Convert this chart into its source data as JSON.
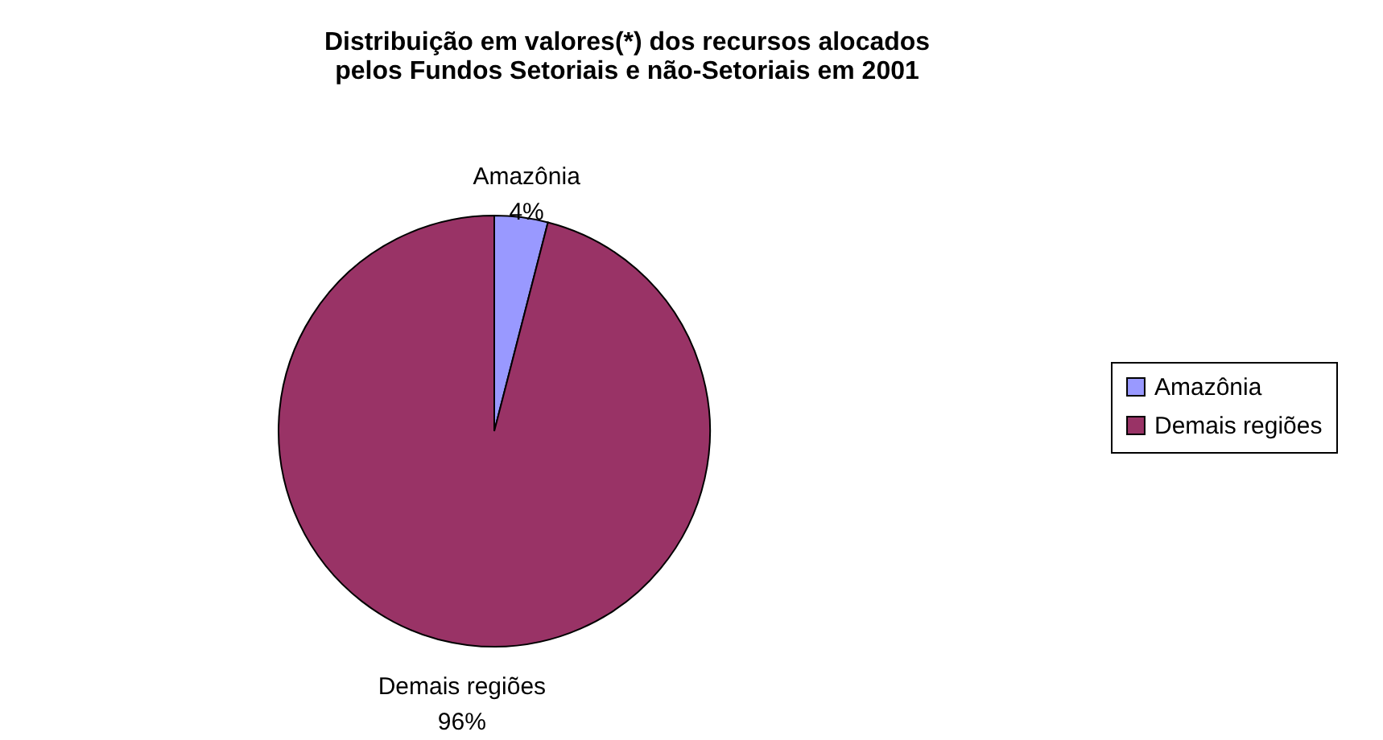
{
  "chart_data": {
    "type": "pie",
    "title": "Distribuição em valores(*) dos recursos alocados pelos Fundos Setoriais e não-Setoriais em 2001",
    "categories": [
      "Amazônia",
      "Demais regiões"
    ],
    "values": [
      4,
      96
    ],
    "colors": [
      "#9999ff",
      "#993366"
    ],
    "value_labels": [
      "4%",
      "96%"
    ],
    "legend": "right"
  }
}
